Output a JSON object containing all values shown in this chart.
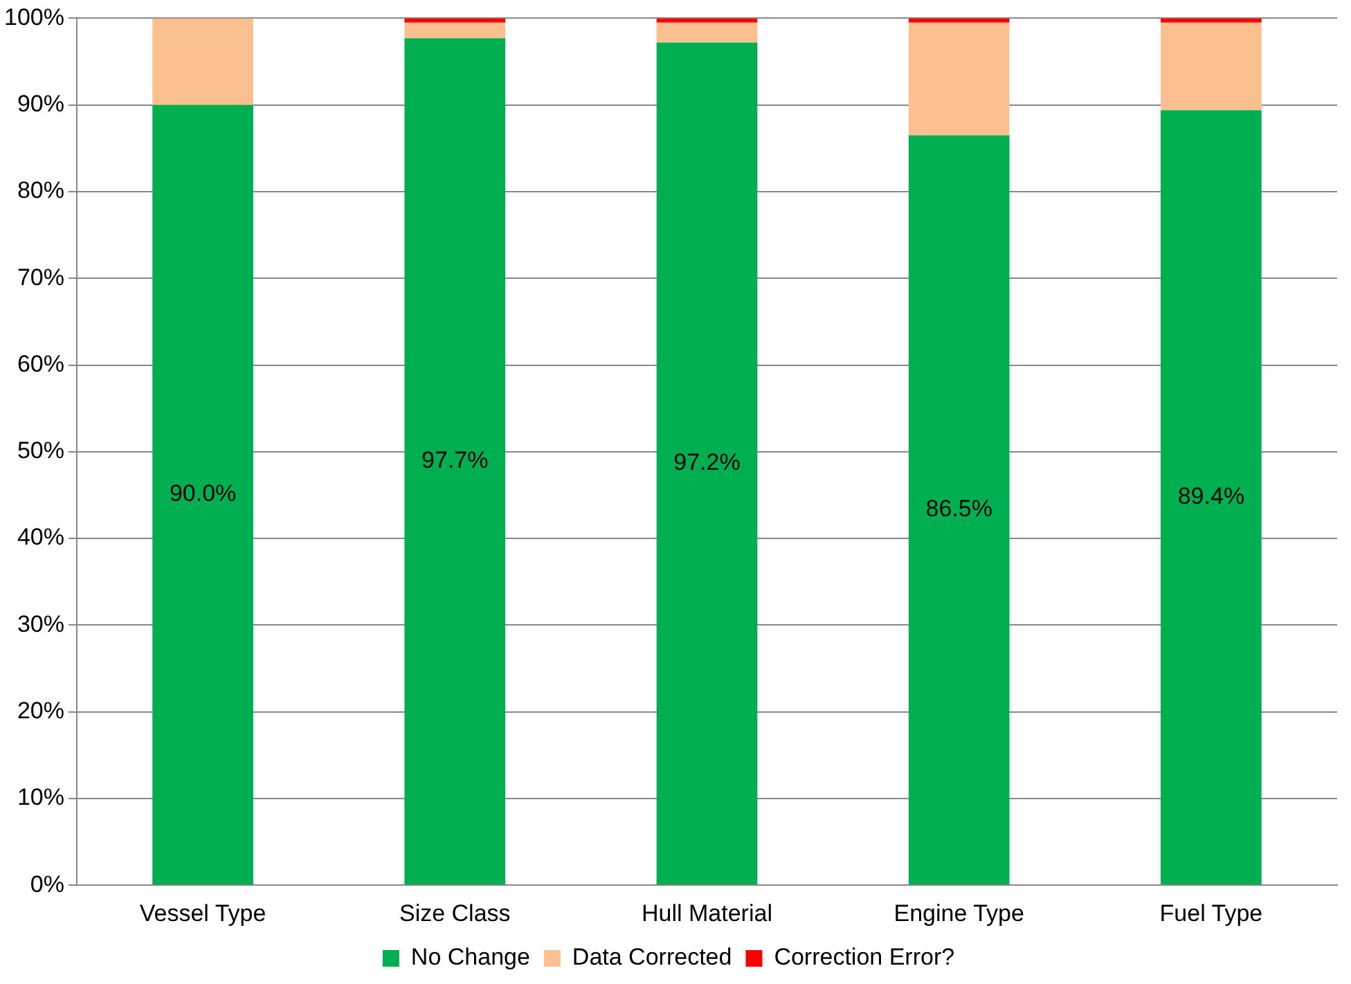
{
  "chart_data": {
    "type": "bar",
    "stacked": true,
    "categories": [
      "Vessel Type",
      "Size Class",
      "Hull Material",
      "Engine Type",
      "Fuel Type"
    ],
    "series": [
      {
        "name": "No Change",
        "color": "#00b050",
        "values": [
          90.0,
          97.7,
          97.2,
          86.5,
          89.4
        ],
        "value_labels": [
          "90.0%",
          "97.7%",
          "97.2%",
          "86.5%",
          "89.4%"
        ]
      },
      {
        "name": "Data Corrected",
        "color": "#fac090",
        "values": [
          10.0,
          1.8,
          2.3,
          13.0,
          10.1
        ]
      },
      {
        "name": "Correction Error?",
        "color": "#ff0000",
        "values": [
          0,
          0.5,
          0.5,
          0.5,
          0.5
        ]
      }
    ],
    "ylim": [
      0,
      100
    ],
    "yticks": [
      {
        "value": 0,
        "label": "0%"
      },
      {
        "value": 10,
        "label": "10%"
      },
      {
        "value": 20,
        "label": "20%"
      },
      {
        "value": 30,
        "label": "30%"
      },
      {
        "value": 40,
        "label": "40%"
      },
      {
        "value": 50,
        "label": "50%"
      },
      {
        "value": 60,
        "label": "60%"
      },
      {
        "value": 70,
        "label": "70%"
      },
      {
        "value": 80,
        "label": "80%"
      },
      {
        "value": 90,
        "label": "90%"
      },
      {
        "value": 100,
        "label": "100%"
      }
    ],
    "grid": "y",
    "legend": "bottom"
  }
}
